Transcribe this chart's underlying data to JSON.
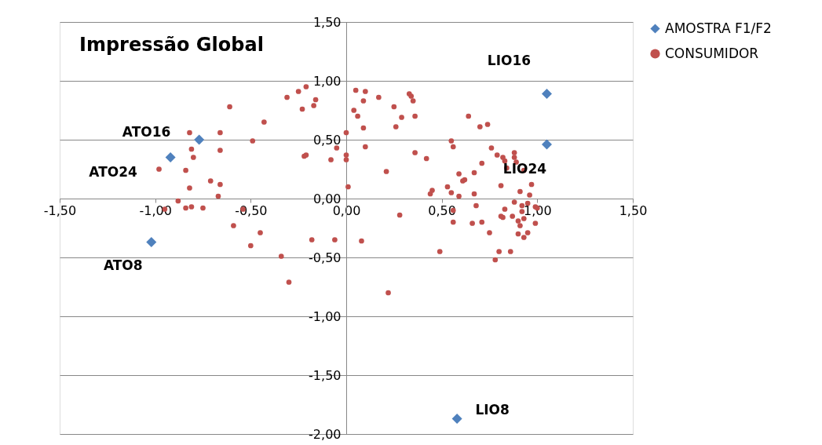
{
  "chart_data": {
    "type": "scatter",
    "title": "Impressão Global",
    "xlim": [
      -1.5,
      1.5
    ],
    "ylim": [
      -2.0,
      1.5
    ],
    "xticks": [
      {
        "value": -1.5,
        "label": "-1,50"
      },
      {
        "value": -1.0,
        "label": "-1,00"
      },
      {
        "value": -0.5,
        "label": "-0,50"
      },
      {
        "value": 0.0,
        "label": "0,00"
      },
      {
        "value": 0.5,
        "label": "0,50"
      },
      {
        "value": 1.0,
        "label": "1,00"
      },
      {
        "value": 1.5,
        "label": "1,50"
      }
    ],
    "yticks": [
      {
        "value": -2.0,
        "label": "-2,00"
      },
      {
        "value": -1.5,
        "label": "-1,50"
      },
      {
        "value": -1.0,
        "label": "-1,00"
      },
      {
        "value": -0.5,
        "label": "-0,50"
      },
      {
        "value": 0.0,
        "label": "0,00"
      },
      {
        "value": 0.5,
        "label": "0,50"
      },
      {
        "value": 1.0,
        "label": "1,00"
      },
      {
        "value": 1.5,
        "label": "1,50"
      }
    ],
    "grid": "y",
    "legend": "right",
    "series": [
      {
        "name": "AMOSTRA F1/F2",
        "color": "#4f81bd",
        "marker": "diamond",
        "x": [
          -0.77,
          -0.92,
          -1.02,
          1.05,
          1.05,
          0.58
        ],
        "values": [
          0.5,
          0.35,
          -0.37,
          0.89,
          0.46,
          -1.87
        ]
      },
      {
        "name": "CONSUMIDOR",
        "color": "#c0504d",
        "marker": "circle",
        "x": [
          -0.31,
          -0.25,
          -0.21,
          -0.16,
          -0.23,
          -0.17,
          -0.61,
          -0.43,
          -0.49,
          -0.82,
          -0.66,
          -0.81,
          -0.8,
          -0.66,
          -0.22,
          -0.21,
          -0.05,
          -0.08,
          0.0,
          0.0,
          0.0,
          0.01,
          -0.98,
          -0.84,
          -0.71,
          -0.66,
          -0.82,
          -0.67,
          -0.88,
          -0.95,
          -0.84,
          -0.81,
          -0.75,
          -0.54,
          -0.59,
          -0.45,
          -0.18,
          -0.06,
          -0.5,
          -0.34,
          -0.3,
          0.08,
          0.22,
          0.28,
          0.49,
          0.56,
          0.56,
          0.66,
          0.71,
          0.68,
          0.75,
          0.8,
          0.78,
          0.86,
          0.83,
          0.81,
          0.82,
          0.87,
          0.88,
          0.9,
          0.91,
          0.9,
          0.92,
          0.92,
          0.93,
          0.93,
          0.95,
          0.95,
          0.99,
          0.99,
          1.0,
          0.05,
          0.1,
          0.09,
          0.17,
          0.33,
          0.34,
          0.35,
          0.25,
          0.29,
          0.36,
          0.04,
          0.06,
          0.09,
          0.26,
          0.1,
          0.36,
          0.42,
          0.21,
          0.64,
          0.7,
          0.74,
          0.55,
          0.56,
          0.76,
          0.79,
          0.82,
          0.83,
          0.88,
          0.88,
          0.89,
          0.71,
          0.67,
          0.59,
          0.61,
          0.62,
          0.84,
          0.93,
          0.45,
          0.44,
          0.53,
          0.55,
          0.59,
          0.67,
          0.81,
          0.91,
          0.97,
          0.96
        ],
        "values": [
          0.86,
          0.91,
          0.95,
          0.84,
          0.76,
          0.79,
          0.78,
          0.65,
          0.49,
          0.56,
          0.56,
          0.42,
          0.35,
          0.41,
          0.36,
          0.37,
          0.43,
          0.33,
          0.56,
          0.37,
          0.33,
          0.1,
          0.25,
          0.24,
          0.15,
          0.12,
          0.09,
          0.02,
          -0.02,
          -0.09,
          -0.08,
          -0.07,
          -0.08,
          -0.09,
          -0.23,
          -0.29,
          -0.35,
          -0.35,
          -0.4,
          -0.49,
          -0.71,
          -0.36,
          -0.8,
          -0.14,
          -0.45,
          -0.1,
          -0.2,
          -0.21,
          -0.2,
          -0.06,
          -0.29,
          -0.45,
          -0.52,
          -0.45,
          -0.09,
          -0.15,
          -0.16,
          -0.15,
          -0.03,
          -0.19,
          -0.23,
          -0.3,
          -0.06,
          -0.11,
          -0.17,
          -0.33,
          -0.29,
          -0.04,
          -0.21,
          -0.07,
          -0.08,
          0.92,
          0.91,
          0.83,
          0.86,
          0.89,
          0.87,
          0.83,
          0.78,
          0.69,
          0.7,
          0.75,
          0.7,
          0.6,
          0.61,
          0.44,
          0.39,
          0.34,
          0.23,
          0.7,
          0.61,
          0.63,
          0.49,
          0.44,
          0.43,
          0.37,
          0.35,
          0.32,
          0.39,
          0.35,
          0.31,
          0.3,
          0.22,
          0.21,
          0.15,
          0.16,
          0.26,
          0.24,
          0.07,
          0.04,
          0.1,
          0.05,
          0.02,
          0.04,
          0.11,
          0.06,
          0.12,
          0.03
        ]
      }
    ],
    "annotations": [
      {
        "text": "LIO16",
        "x": 1.05,
        "y": 0.89
      },
      {
        "text": "ATO16",
        "x": -0.77,
        "y": 0.5
      },
      {
        "text": "ATO24",
        "x": -0.92,
        "y": 0.35
      },
      {
        "text": "LIO24",
        "x": 1.05,
        "y": 0.46
      },
      {
        "text": "ATO8",
        "x": -1.02,
        "y": -0.37
      },
      {
        "text": "LIO8",
        "x": 0.58,
        "y": -1.87
      }
    ]
  }
}
